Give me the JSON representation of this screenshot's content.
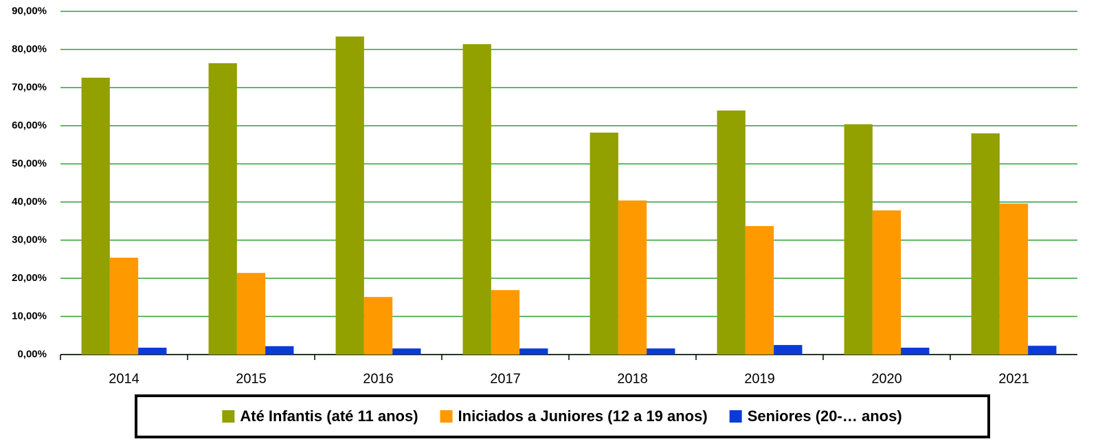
{
  "chart_data": {
    "type": "bar",
    "categories": [
      "2014",
      "2015",
      "2016",
      "2017",
      "2018",
      "2019",
      "2020",
      "2021"
    ],
    "series": [
      {
        "name": "Até Infantis (até 11 anos)",
        "color": "#92a000",
        "values": [
          72.6,
          76.4,
          83.4,
          81.4,
          58.2,
          64.0,
          60.4,
          58.0
        ]
      },
      {
        "name": "Iniciados a Juniores (12 a 19 anos)",
        "color": "#ff9900",
        "values": [
          25.4,
          21.4,
          15.1,
          16.9,
          40.4,
          33.7,
          37.8,
          39.6
        ]
      },
      {
        "name": "Seniores (20-… anos)",
        "color": "#0a3bd6",
        "values": [
          1.8,
          2.2,
          1.6,
          1.6,
          1.6,
          2.5,
          1.8,
          2.3
        ]
      }
    ],
    "ylim": [
      0,
      90
    ],
    "yticks": [
      {
        "value": 0,
        "label": "0,00%"
      },
      {
        "value": 10,
        "label": "10,00%"
      },
      {
        "value": 20,
        "label": "20,00%"
      },
      {
        "value": 30,
        "label": "30,00%"
      },
      {
        "value": 40,
        "label": "40,00%"
      },
      {
        "value": 50,
        "label": "50,00%"
      },
      {
        "value": 60,
        "label": "60,00%"
      },
      {
        "value": 70,
        "label": "70,00%"
      },
      {
        "value": 80,
        "label": "80,00%"
      },
      {
        "value": 90,
        "label": "90,00%"
      }
    ],
    "grid": true,
    "grid_color": "#2f9e2f",
    "legend": "bottom"
  }
}
